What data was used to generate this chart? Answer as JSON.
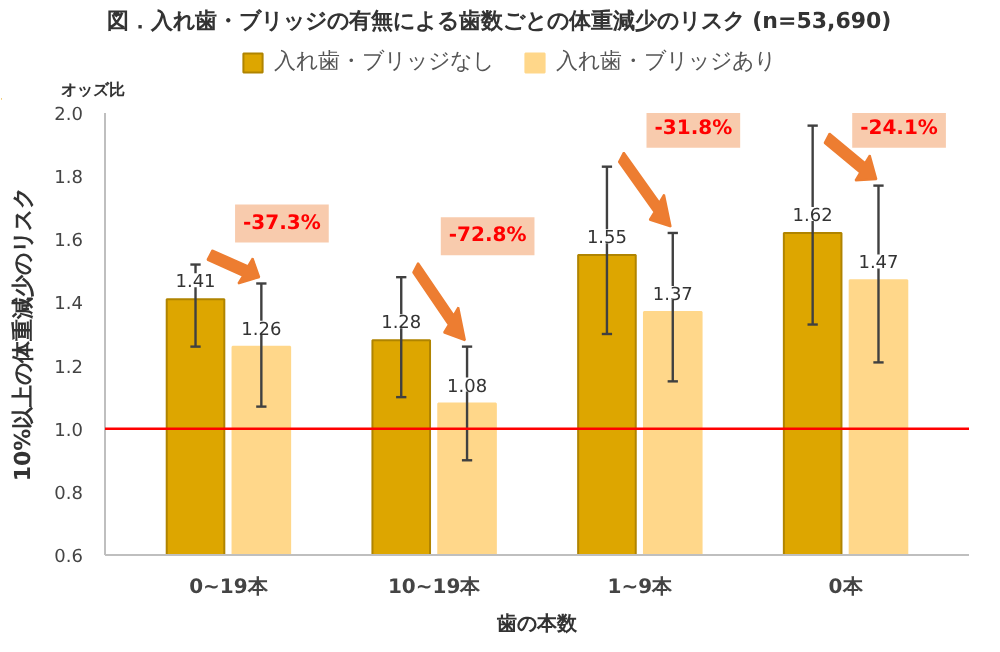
{
  "chart_data": {
    "type": "bar",
    "title": "図．入れ歯・ブリッジの有無による歯数ごとの体重減少のリスク (n=53,690)",
    "xlabel": "歯の本数",
    "ylabel": "10%以上の体重減少のリスク",
    "categories": [
      "0~19本",
      "10~19本",
      "1~9本",
      "0本"
    ],
    "series": [
      {
        "name": "入れ歯・ブリッジなし",
        "color": "#dda600",
        "values": [
          1.41,
          1.28,
          1.55,
          1.62
        ],
        "errors": [
          [
            1.26,
            1.52
          ],
          [
            1.1,
            1.48
          ],
          [
            1.3,
            1.83
          ],
          [
            1.33,
            1.96
          ]
        ]
      },
      {
        "name": "入れ歯・ブリッジあり",
        "color": "#ffd78a",
        "values": [
          1.26,
          1.08,
          1.37,
          1.47
        ],
        "errors": [
          [
            1.07,
            1.46
          ],
          [
            0.9,
            1.26
          ],
          [
            1.15,
            1.62
          ],
          [
            1.21,
            1.77
          ]
        ]
      }
    ],
    "ylim": [
      0.6,
      2.0
    ],
    "yticks": [
      0.6,
      0.8,
      {
        "value": 1.0,
        "label": "1.0"
      },
      1.2,
      1.4,
      1.6,
      1.8,
      {
        "value": 2.0,
        "label": "2.0"
      }
    ],
    "ref_lines": [
      {
        "axis": "y",
        "value": 1.0,
        "color": "#ff0000"
      }
    ],
    "annotations": [
      "オッズ比",
      "-37.3%",
      "-72.8%",
      "-31.8%",
      "-24.1%"
    ],
    "data_labels": true,
    "legend": "top"
  }
}
